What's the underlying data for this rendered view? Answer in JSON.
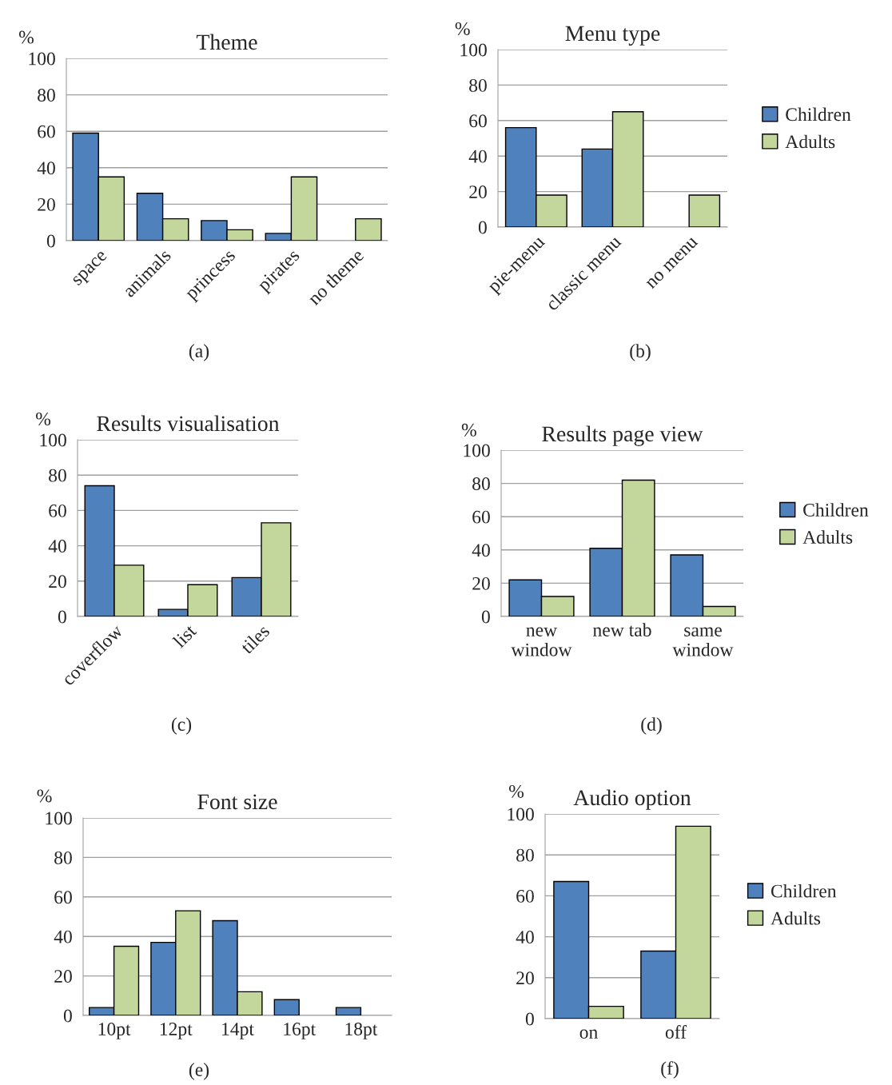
{
  "chart_data": [
    {
      "type": "bar",
      "title": "Theme",
      "ylabel": "%",
      "annotations": [
        "(a)"
      ],
      "categories": [
        "space",
        "animals",
        "princess",
        "pirates",
        "no theme"
      ],
      "series": [
        {
          "color": "#4f81bd",
          "values": [
            59,
            26,
            11,
            4,
            null
          ]
        },
        {
          "color": "#c3d69b",
          "values": [
            35,
            12,
            6,
            35,
            12
          ]
        }
      ],
      "ylim": [
        0,
        100
      ],
      "yticks": [
        0,
        20,
        40,
        60,
        80,
        100
      ],
      "grid": "y",
      "legend": false
    },
    {
      "type": "bar",
      "title": "Menu type",
      "ylabel": "%",
      "annotations": [
        "(b)"
      ],
      "categories": [
        "pie-menu",
        "classic menu",
        "no menu"
      ],
      "series": [
        {
          "name": "Children",
          "color": "#4f81bd",
          "values": [
            56,
            44,
            null
          ]
        },
        {
          "name": "Adults",
          "color": "#c3d69b",
          "values": [
            18,
            65,
            18
          ]
        }
      ],
      "ylim": [
        0,
        100
      ],
      "yticks": [
        0,
        20,
        40,
        60,
        80,
        100
      ],
      "grid": "y",
      "legend": "right"
    },
    {
      "type": "bar",
      "title": "Results visualisation",
      "ylabel": "%",
      "annotations": [
        "(c)"
      ],
      "categories": [
        "coverflow",
        "list",
        "tiles"
      ],
      "series": [
        {
          "color": "#4f81bd",
          "values": [
            74,
            4,
            22
          ]
        },
        {
          "color": "#c3d69b",
          "values": [
            29,
            18,
            53
          ]
        }
      ],
      "ylim": [
        0,
        100
      ],
      "yticks": [
        0,
        20,
        40,
        60,
        80,
        100
      ],
      "grid": "y",
      "legend": false
    },
    {
      "type": "bar",
      "title": "Results page view",
      "ylabel": "%",
      "annotations": [
        "(d)"
      ],
      "categories": [
        "new window",
        "new tab",
        "same window"
      ],
      "series": [
        {
          "name": "Children",
          "color": "#4f81bd",
          "values": [
            22,
            41,
            37
          ]
        },
        {
          "name": "Adults",
          "color": "#c3d69b",
          "values": [
            12,
            82,
            6
          ]
        }
      ],
      "ylim": [
        0,
        100
      ],
      "yticks": [
        0,
        20,
        40,
        60,
        80,
        100
      ],
      "grid": "y",
      "legend": "right"
    },
    {
      "type": "bar",
      "title": "Font size",
      "ylabel": "%",
      "annotations": [
        "(e)"
      ],
      "categories": [
        "10pt",
        "12pt",
        "14pt",
        "16pt",
        "18pt"
      ],
      "series": [
        {
          "color": "#4f81bd",
          "values": [
            4,
            37,
            48,
            8,
            4
          ]
        },
        {
          "color": "#c3d69b",
          "values": [
            35,
            53,
            12,
            null,
            null
          ]
        }
      ],
      "ylim": [
        0,
        100
      ],
      "yticks": [
        0,
        20,
        40,
        60,
        80,
        100
      ],
      "grid": "y",
      "legend": false
    },
    {
      "type": "bar",
      "title": "Audio option",
      "ylabel": "%",
      "annotations": [
        "(f)"
      ],
      "categories": [
        "on",
        "off"
      ],
      "series": [
        {
          "name": "Children",
          "color": "#4f81bd",
          "values": [
            67,
            33
          ]
        },
        {
          "name": "Adults",
          "color": "#c3d69b",
          "values": [
            6,
            94
          ]
        }
      ],
      "ylim": [
        0,
        100
      ],
      "yticks": [
        0,
        20,
        40,
        60,
        80,
        100
      ],
      "grid": "y",
      "legend": "right"
    }
  ]
}
